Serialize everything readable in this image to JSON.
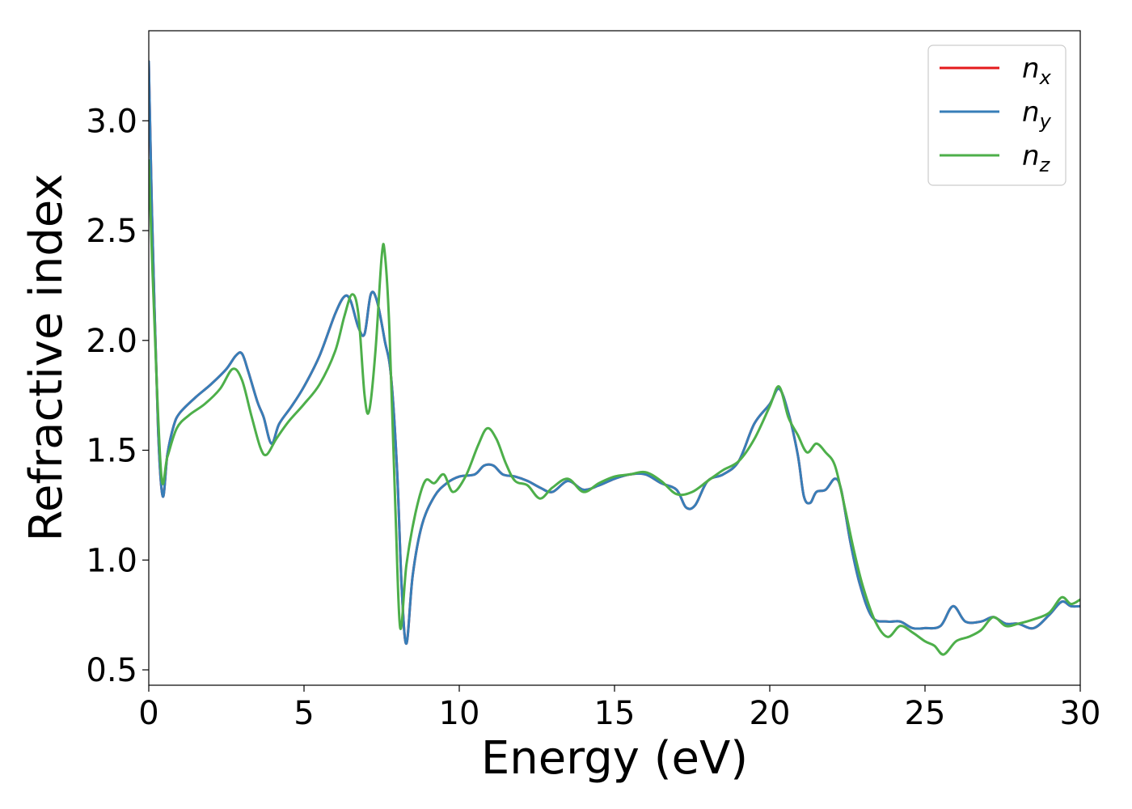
{
  "chart_data": {
    "type": "line",
    "xlabel": "Energy (eV)",
    "ylabel": "Refractive index",
    "xlim": [
      0,
      30
    ],
    "ylim": [
      0.43,
      3.41
    ],
    "xticks": [
      0,
      5,
      10,
      15,
      20,
      25,
      30
    ],
    "xtick_labels": [
      "0",
      "5",
      "10",
      "15",
      "20",
      "25",
      "30"
    ],
    "yticks": [
      0.5,
      1.0,
      1.5,
      2.0,
      2.5,
      3.0
    ],
    "ytick_labels": [
      "0.5",
      "1.0",
      "1.5",
      "2.0",
      "2.5",
      "3.0"
    ],
    "grid": false,
    "legend_position": "top-right",
    "series": [
      {
        "name": "n_x",
        "label_base": "n",
        "label_sub": "x",
        "color": "#e41a1c",
        "x": [
          0,
          0.1,
          0.3,
          0.45,
          0.6,
          0.8,
          1.0,
          1.5,
          2.0,
          2.5,
          2.8,
          3.0,
          3.2,
          3.5,
          3.7,
          3.95,
          4.2,
          4.6,
          5.0,
          5.5,
          6.0,
          6.3,
          6.5,
          6.75,
          6.95,
          7.15,
          7.35,
          7.6,
          7.8,
          8.0,
          8.15,
          8.3,
          8.5,
          8.8,
          9.2,
          9.6,
          10.0,
          10.5,
          10.8,
          11.1,
          11.4,
          11.8,
          12.2,
          12.6,
          13.0,
          13.5,
          14.0,
          14.5,
          15.0,
          15.5,
          16.0,
          16.5,
          17.0,
          17.3,
          17.6,
          18.0,
          18.5,
          19.0,
          19.5,
          20.0,
          20.3,
          20.6,
          20.9,
          21.1,
          21.3,
          21.5,
          21.8,
          22.1,
          22.3,
          22.6,
          22.9,
          23.3,
          23.8,
          24.2,
          24.6,
          25.0,
          25.5,
          25.9,
          26.3,
          26.8,
          27.2,
          27.6,
          28.0,
          28.5,
          29.0,
          29.4,
          29.7,
          30.0
        ],
        "values": [
          3.27,
          2.6,
          1.6,
          1.29,
          1.48,
          1.61,
          1.67,
          1.74,
          1.8,
          1.87,
          1.93,
          1.94,
          1.86,
          1.72,
          1.65,
          1.53,
          1.62,
          1.7,
          1.79,
          1.93,
          2.12,
          2.2,
          2.18,
          2.06,
          2.03,
          2.21,
          2.18,
          2.0,
          1.84,
          1.4,
          0.86,
          0.62,
          0.93,
          1.16,
          1.29,
          1.35,
          1.38,
          1.39,
          1.43,
          1.43,
          1.39,
          1.38,
          1.36,
          1.33,
          1.31,
          1.36,
          1.32,
          1.34,
          1.37,
          1.39,
          1.39,
          1.35,
          1.32,
          1.24,
          1.25,
          1.36,
          1.39,
          1.45,
          1.62,
          1.71,
          1.78,
          1.67,
          1.48,
          1.29,
          1.26,
          1.31,
          1.32,
          1.37,
          1.32,
          1.08,
          0.89,
          0.74,
          0.72,
          0.72,
          0.69,
          0.69,
          0.7,
          0.79,
          0.72,
          0.72,
          0.74,
          0.71,
          0.71,
          0.69,
          0.75,
          0.81,
          0.79,
          0.79
        ]
      },
      {
        "name": "n_y",
        "label_base": "n",
        "label_sub": "y",
        "color": "#377eb8",
        "x": [
          0,
          0.1,
          0.3,
          0.45,
          0.6,
          0.8,
          1.0,
          1.5,
          2.0,
          2.5,
          2.8,
          3.0,
          3.2,
          3.5,
          3.7,
          3.95,
          4.2,
          4.6,
          5.0,
          5.5,
          6.0,
          6.3,
          6.5,
          6.75,
          6.95,
          7.15,
          7.35,
          7.6,
          7.8,
          8.0,
          8.15,
          8.3,
          8.5,
          8.8,
          9.2,
          9.6,
          10.0,
          10.5,
          10.8,
          11.1,
          11.4,
          11.8,
          12.2,
          12.6,
          13.0,
          13.5,
          14.0,
          14.5,
          15.0,
          15.5,
          16.0,
          16.5,
          17.0,
          17.3,
          17.6,
          18.0,
          18.5,
          19.0,
          19.5,
          20.0,
          20.3,
          20.6,
          20.9,
          21.1,
          21.3,
          21.5,
          21.8,
          22.1,
          22.3,
          22.6,
          22.9,
          23.3,
          23.8,
          24.2,
          24.6,
          25.0,
          25.5,
          25.9,
          26.3,
          26.8,
          27.2,
          27.6,
          28.0,
          28.5,
          29.0,
          29.4,
          29.7,
          30.0
        ],
        "values": [
          3.27,
          2.6,
          1.6,
          1.29,
          1.48,
          1.61,
          1.67,
          1.74,
          1.8,
          1.87,
          1.93,
          1.94,
          1.86,
          1.72,
          1.65,
          1.53,
          1.62,
          1.7,
          1.79,
          1.93,
          2.12,
          2.2,
          2.18,
          2.06,
          2.03,
          2.21,
          2.18,
          2.0,
          1.84,
          1.4,
          0.86,
          0.62,
          0.93,
          1.16,
          1.29,
          1.35,
          1.38,
          1.39,
          1.43,
          1.43,
          1.39,
          1.38,
          1.36,
          1.33,
          1.31,
          1.36,
          1.32,
          1.34,
          1.37,
          1.39,
          1.39,
          1.35,
          1.32,
          1.24,
          1.25,
          1.36,
          1.39,
          1.45,
          1.62,
          1.71,
          1.78,
          1.67,
          1.48,
          1.29,
          1.26,
          1.31,
          1.32,
          1.37,
          1.32,
          1.08,
          0.89,
          0.74,
          0.72,
          0.72,
          0.69,
          0.69,
          0.7,
          0.79,
          0.72,
          0.72,
          0.74,
          0.71,
          0.71,
          0.69,
          0.75,
          0.81,
          0.79,
          0.79
        ]
      },
      {
        "name": "n_z",
        "label_base": "n",
        "label_sub": "z",
        "color": "#4daf4a",
        "x": [
          0,
          0.15,
          0.4,
          0.6,
          0.9,
          1.3,
          1.8,
          2.3,
          2.7,
          3.0,
          3.3,
          3.6,
          3.8,
          4.1,
          4.5,
          5.0,
          5.5,
          6.0,
          6.3,
          6.55,
          6.75,
          6.95,
          7.1,
          7.3,
          7.5,
          7.6,
          7.75,
          7.95,
          8.1,
          8.3,
          8.6,
          8.9,
          9.2,
          9.5,
          9.8,
          10.2,
          10.6,
          10.9,
          11.2,
          11.5,
          11.8,
          12.2,
          12.6,
          13.0,
          13.5,
          14.0,
          14.5,
          15.0,
          15.5,
          16.0,
          16.5,
          17.0,
          17.5,
          18.0,
          18.5,
          19.0,
          19.5,
          20.0,
          20.3,
          20.6,
          20.9,
          21.2,
          21.5,
          21.8,
          22.1,
          22.4,
          22.7,
          23.0,
          23.4,
          23.8,
          24.2,
          24.6,
          25.0,
          25.3,
          25.6,
          26.0,
          26.4,
          26.8,
          27.2,
          27.6,
          28.0,
          28.5,
          29.0,
          29.4,
          29.7,
          30.0
        ],
        "values": [
          2.82,
          2.2,
          1.39,
          1.47,
          1.6,
          1.66,
          1.71,
          1.78,
          1.87,
          1.82,
          1.66,
          1.51,
          1.48,
          1.55,
          1.63,
          1.71,
          1.8,
          1.95,
          2.11,
          2.21,
          2.12,
          1.75,
          1.68,
          1.95,
          2.38,
          2.4,
          2.05,
          1.2,
          0.69,
          0.98,
          1.22,
          1.36,
          1.35,
          1.39,
          1.31,
          1.38,
          1.52,
          1.6,
          1.55,
          1.44,
          1.36,
          1.34,
          1.28,
          1.33,
          1.37,
          1.31,
          1.35,
          1.38,
          1.39,
          1.4,
          1.36,
          1.3,
          1.31,
          1.36,
          1.41,
          1.45,
          1.55,
          1.7,
          1.79,
          1.65,
          1.57,
          1.49,
          1.53,
          1.49,
          1.43,
          1.25,
          1.05,
          0.88,
          0.72,
          0.65,
          0.7,
          0.67,
          0.63,
          0.61,
          0.57,
          0.63,
          0.65,
          0.68,
          0.74,
          0.7,
          0.71,
          0.73,
          0.76,
          0.83,
          0.8,
          0.82
        ]
      }
    ]
  }
}
